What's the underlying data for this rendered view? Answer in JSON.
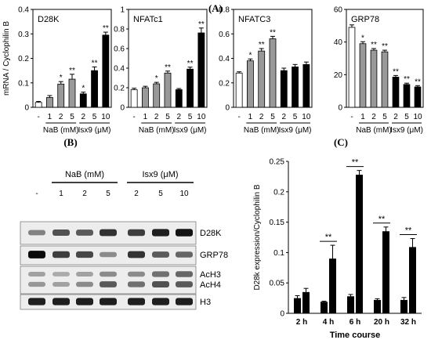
{
  "panel_labels": {
    "a": "(A)",
    "b": "(B)",
    "c": "(C)"
  },
  "colors": {
    "control": "#ffffff",
    "nab": "#999999",
    "isx9": "#000000",
    "edge": "#000000"
  },
  "chart_data": [
    {
      "id": "d28k",
      "type": "bar",
      "title": "D28K",
      "ylabel": "mRNA / Cyclophilin B",
      "ylim": [
        0,
        0.4
      ],
      "yticks": [
        0,
        0.1,
        0.2,
        0.3,
        0.4
      ],
      "yticklabels": [
        "0",
        "0.1",
        "0.2",
        "0.3",
        "0.4"
      ],
      "categories": [
        "-",
        "1",
        "2",
        "5",
        "2",
        "5",
        "10"
      ],
      "groups": [
        {
          "label": "NaB (mM)",
          "from": 1,
          "to": 3
        },
        {
          "label": "Isx9 (μM)",
          "from": 4,
          "to": 6
        }
      ],
      "series_group": [
        "control",
        "nab",
        "nab",
        "nab",
        "isx9",
        "isx9",
        "isx9"
      ],
      "values": [
        0.02,
        0.04,
        0.095,
        0.115,
        0.055,
        0.15,
        0.295
      ],
      "errors": [
        0.004,
        0.008,
        0.01,
        0.02,
        0.007,
        0.015,
        0.012
      ],
      "significance": [
        "",
        "",
        "*",
        "**",
        "*",
        "**",
        "**"
      ]
    },
    {
      "id": "nfatc1",
      "type": "bar",
      "title": "NFATc1",
      "ylim": [
        0,
        1
      ],
      "yticks": [
        0,
        0.2,
        0.4,
        0.6,
        0.8,
        1
      ],
      "yticklabels": [
        "0",
        "0.2",
        "0.4",
        "0.6",
        "0.8",
        "1"
      ],
      "categories": [
        "-",
        "1",
        "2",
        "5",
        "2",
        "5",
        "10"
      ],
      "groups": [
        {
          "label": "NaB (mM)",
          "from": 1,
          "to": 3
        },
        {
          "label": "Isx9 (μM)",
          "from": 4,
          "to": 6
        }
      ],
      "series_group": [
        "control",
        "nab",
        "nab",
        "nab",
        "isx9",
        "isx9",
        "isx9"
      ],
      "values": [
        0.18,
        0.2,
        0.24,
        0.35,
        0.18,
        0.39,
        0.76
      ],
      "errors": [
        0.015,
        0.015,
        0.015,
        0.02,
        0.012,
        0.02,
        0.05
      ],
      "significance": [
        "",
        "",
        "*",
        "**",
        "",
        "**",
        "**"
      ]
    },
    {
      "id": "nfatc3",
      "type": "bar",
      "title": "NFATC3",
      "ylim": [
        0,
        0.8
      ],
      "yticks": [
        0,
        0.2,
        0.4,
        0.6,
        0.8
      ],
      "yticklabels": [
        "0",
        "0.2",
        "0.4",
        "0.6",
        "0.8"
      ],
      "categories": [
        "-",
        "1",
        "2",
        "5",
        "2",
        "5",
        "10"
      ],
      "groups": [
        {
          "label": "NaB (mM)",
          "from": 1,
          "to": 3
        },
        {
          "label": "Isx9 (μM)",
          "from": 4,
          "to": 6
        }
      ],
      "series_group": [
        "control",
        "nab",
        "nab",
        "nab",
        "isx9",
        "isx9",
        "isx9"
      ],
      "values": [
        0.28,
        0.38,
        0.46,
        0.56,
        0.3,
        0.33,
        0.35
      ],
      "errors": [
        0.01,
        0.015,
        0.02,
        0.02,
        0.02,
        0.02,
        0.02
      ],
      "significance": [
        "",
        "*",
        "**",
        "**",
        "",
        "",
        ""
      ]
    },
    {
      "id": "grp78",
      "type": "bar",
      "title": "GRP78",
      "ylim": [
        0,
        60
      ],
      "yticks": [
        0,
        20,
        40,
        60
      ],
      "yticklabels": [
        "0",
        "20",
        "40",
        "60"
      ],
      "categories": [
        "-",
        "1",
        "2",
        "5",
        "2",
        "5",
        "10"
      ],
      "groups": [
        {
          "label": "NaB (mM)",
          "from": 1,
          "to": 3
        },
        {
          "label": "Isx9 (μM)",
          "from": 4,
          "to": 6
        }
      ],
      "series_group": [
        "control",
        "nab",
        "nab",
        "nab",
        "isx9",
        "isx9",
        "isx9"
      ],
      "values": [
        49,
        39,
        35,
        34,
        18.5,
        14,
        12.5
      ],
      "errors": [
        1.5,
        1.2,
        1,
        1,
        1,
        0.8,
        0.8
      ],
      "significance": [
        "",
        "*",
        "**",
        "**",
        "**",
        "**",
        "**"
      ]
    },
    {
      "id": "timecourse",
      "type": "bar",
      "ylabel": "D28k expression/Cyclophilin B",
      "xlabel": "Time course",
      "ylim": [
        0,
        0.25
      ],
      "yticks": [
        0,
        0.05,
        0.1,
        0.15,
        0.2,
        0.25
      ],
      "yticklabels": [
        "0",
        "0.05",
        "0.1",
        "0.15",
        "0.2",
        "0.25"
      ],
      "categories": [
        "2 h",
        "4 h",
        "6 h",
        "20 h",
        "32 h"
      ],
      "series": [
        {
          "values": [
            0.025,
            0.019,
            0.028,
            0.022,
            0.022
          ],
          "errors": [
            0.004,
            0.001,
            0.003,
            0.002,
            0.004
          ]
        },
        {
          "values": [
            0.035,
            0.09,
            0.228,
            0.135,
            0.109
          ],
          "errors": [
            0.006,
            0.022,
            0.007,
            0.007,
            0.014
          ]
        }
      ],
      "significance": [
        "",
        "**",
        "**",
        "**",
        "**"
      ]
    }
  ],
  "western_blot": {
    "header_groups": [
      {
        "label": "NaB (mM)",
        "from": 1,
        "to": 3
      },
      {
        "label": "Isx9 (μM)",
        "from": 4,
        "to": 6
      }
    ],
    "lanes": [
      "-",
      "1",
      "2",
      "5",
      "2",
      "5",
      "10"
    ],
    "bands": [
      {
        "label": "D28K",
        "intensities": [
          0.35,
          0.6,
          0.55,
          0.75,
          0.7,
          0.85,
          0.9
        ]
      },
      {
        "label": "GRP78",
        "intensities": [
          0.95,
          0.7,
          0.65,
          0.3,
          0.75,
          0.55,
          0.5
        ]
      },
      {
        "label": "AcH3",
        "intensities": [
          0.2,
          0.15,
          0.2,
          0.3,
          0.3,
          0.45,
          0.5
        ]
      },
      {
        "label": "AcH4",
        "intensities": [
          0.25,
          0.2,
          0.3,
          0.55,
          0.45,
          0.6,
          0.55
        ]
      },
      {
        "label": "H3",
        "intensities": [
          0.85,
          0.85,
          0.85,
          0.85,
          0.85,
          0.85,
          0.85
        ]
      }
    ]
  }
}
